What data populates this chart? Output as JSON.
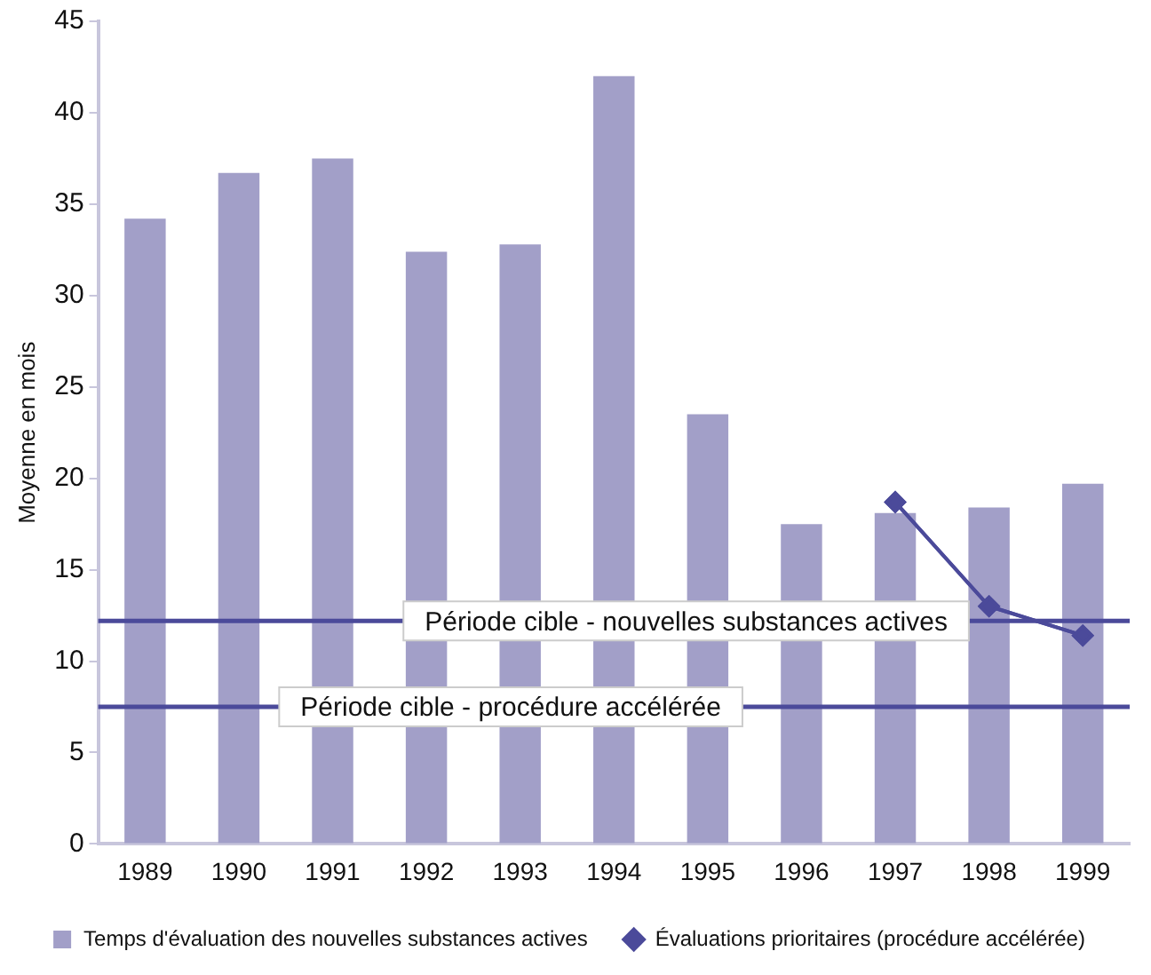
{
  "chart_data": {
    "type": "bar",
    "ylabel": "Moyenne en mois",
    "categories": [
      "1989",
      "1990",
      "1991",
      "1992",
      "1993",
      "1994",
      "1995",
      "1996",
      "1997",
      "1998",
      "1999"
    ],
    "series": [
      {
        "name": "Temps d'évaluation des nouvelles substances actives",
        "color": "#a29fc8",
        "values": [
          34.2,
          36.7,
          37.5,
          32.4,
          32.8,
          42,
          23.5,
          17.5,
          18.1,
          18.4,
          19.7
        ]
      },
      {
        "name": "Évaluations prioritaires (procédure accélérée)",
        "type": "line",
        "color": "#4b4a9a",
        "marker": "diamond",
        "values": [
          null,
          null,
          null,
          null,
          null,
          null,
          null,
          null,
          18.7,
          13,
          11.4
        ]
      }
    ],
    "ylim": [
      0,
      45
    ],
    "yticks": [
      0,
      5,
      10,
      15,
      20,
      25,
      30,
      35,
      40,
      45
    ],
    "grid": false,
    "legend": "bottom",
    "ref_lines": [
      {
        "axis": "y",
        "value": 12.2,
        "label": "Période cible - nouvelles substances actives",
        "color": "#4b4a9a"
      },
      {
        "axis": "y",
        "value": 7.5,
        "label": "Période cible - procédure accélérée",
        "color": "#4b4a9a"
      }
    ]
  }
}
